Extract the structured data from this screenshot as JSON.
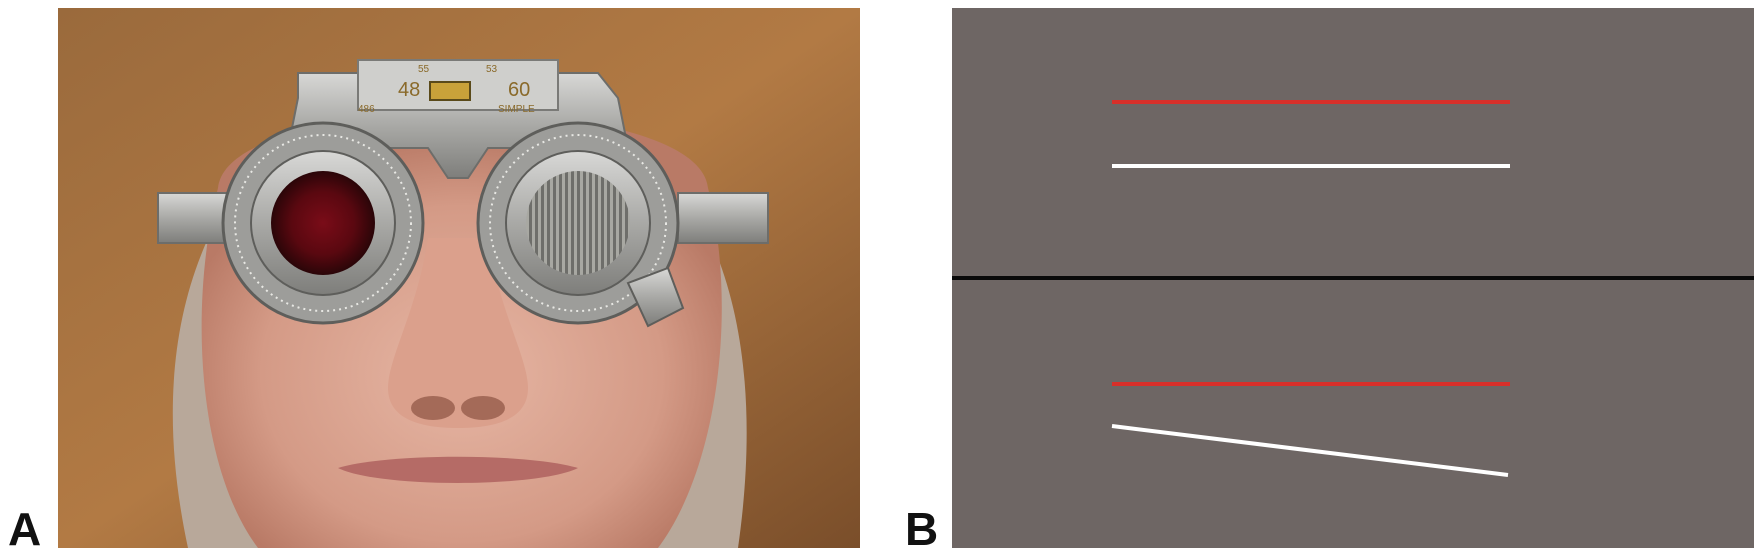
{
  "panels": {
    "a": {
      "label": "A"
    },
    "b": {
      "label": "B"
    }
  },
  "photo": {
    "frame_scale_left": "48",
    "frame_scale_right": "60",
    "frame_scale_small_left": "55",
    "frame_scale_small_right": "53",
    "frame_code": "486",
    "frame_tag": "SIMPLE",
    "left_lens_filter": "red",
    "right_lens_filter": "maddox-rod"
  },
  "stimulus": {
    "background_color": "#6e6664",
    "divider_color": "#0a0a0a",
    "upper_section": {
      "red_line": "horizontal",
      "white_line": "horizontal"
    },
    "lower_section": {
      "red_line": "horizontal",
      "white_line": "tilted"
    },
    "red_color": "#d8302a",
    "white_color": "#ffffff"
  }
}
